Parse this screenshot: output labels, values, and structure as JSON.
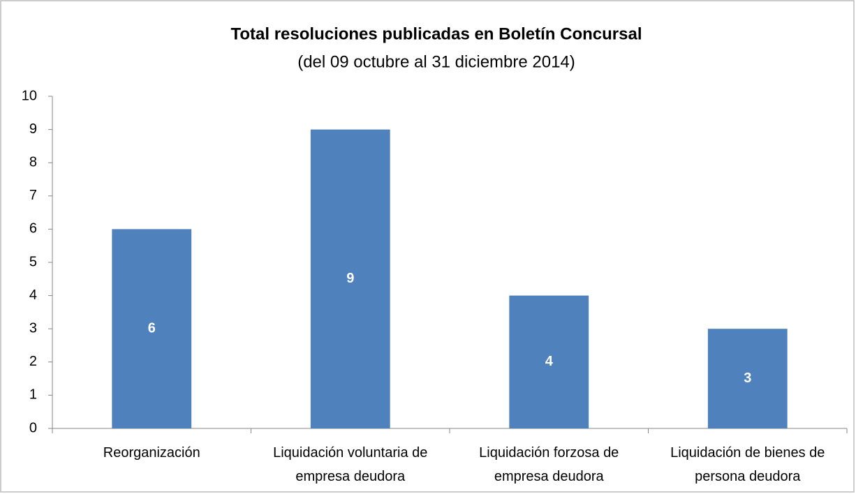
{
  "chart_data": {
    "type": "bar",
    "title": "Total resoluciones publicadas en Boletín Concursal",
    "subtitle": "(del 09 octubre al 31 diciembre 2014)",
    "categories": [
      "Reorganización",
      "Liquidación voluntaria de\nempresa deudora",
      "Liquidación forzosa de\nempresa deudora",
      "Liquidación de bienes de\npersona deudora"
    ],
    "values": [
      6,
      9,
      4,
      3
    ],
    "color": "#4f81bd",
    "ylim": [
      0,
      10
    ],
    "yticks": [
      0,
      1,
      2,
      3,
      4,
      5,
      6,
      7,
      8,
      9,
      10
    ],
    "grid": false
  }
}
